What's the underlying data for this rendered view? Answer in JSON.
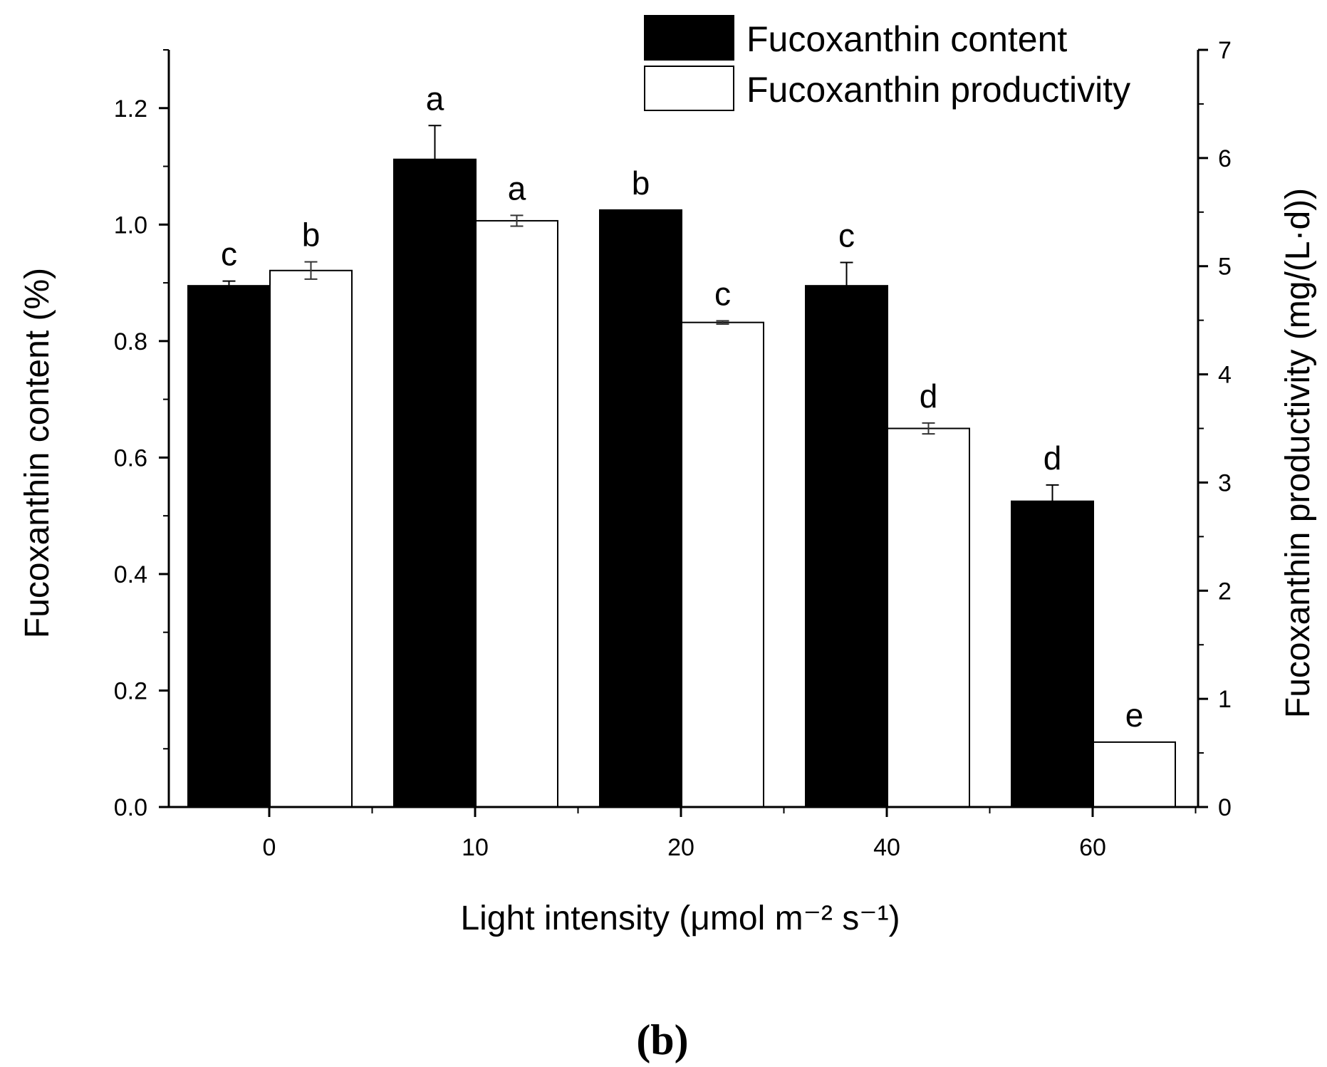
{
  "chart_data": {
    "type": "bar",
    "categories": [
      "0",
      "10",
      "20",
      "40",
      "60"
    ],
    "series": [
      {
        "name": "Fucoxanthin content",
        "axis": "left",
        "fill": "#000000",
        "values": [
          0.895,
          1.112,
          1.025,
          0.895,
          0.525
        ],
        "errors": [
          0.008,
          0.058,
          0.0,
          0.04,
          0.028
        ],
        "significance": [
          "c",
          "a",
          "b",
          "c",
          "d"
        ]
      },
      {
        "name": "Fucoxanthin productivity",
        "axis": "right",
        "fill": "#ffffff",
        "values": [
          4.96,
          5.42,
          4.48,
          3.5,
          0.6
        ],
        "errors": [
          0.08,
          0.05,
          0.015,
          0.05,
          0.0
        ],
        "significance": [
          "b",
          "a",
          "c",
          "d",
          "e"
        ]
      }
    ],
    "xlabel": "Light intensity (μmol m⁻² s⁻¹)",
    "ylabel_left": "Fucoxanthin content (%)",
    "ylabel_right": "Fucoxanthin productivity (mg/(L·d))",
    "ylim_left": [
      0,
      1.3
    ],
    "ylim_right": [
      0,
      7
    ],
    "yticks_left": [
      "0.0",
      "0.2",
      "0.4",
      "0.6",
      "0.8",
      "1.0",
      "1.2"
    ],
    "yticks_right": [
      "0",
      "1",
      "2",
      "3",
      "4",
      "5",
      "6",
      "7"
    ],
    "legend_position": "top-right",
    "grid": false
  },
  "figure": {
    "panel_label": "(b)"
  }
}
